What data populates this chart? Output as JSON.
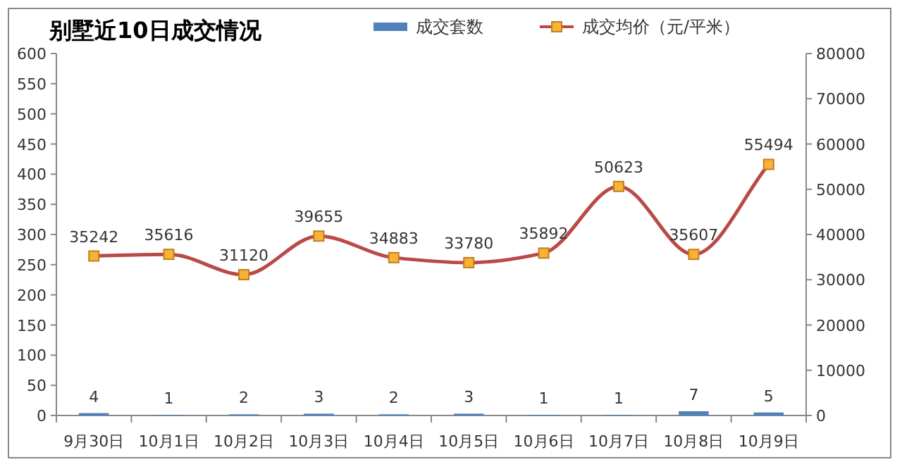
{
  "chart_data": {
    "type": "bar",
    "title": "别墅近10日成交情况",
    "categories": [
      "9月30日",
      "10月1日",
      "10月2日",
      "10月3日",
      "10月4日",
      "10月5日",
      "10月6日",
      "10月7日",
      "10月8日",
      "10月9日"
    ],
    "series": [
      {
        "name": "成交套数",
        "color": "#4f81bd",
        "values": [
          4,
          1,
          2,
          3,
          2,
          3,
          1,
          1,
          7,
          5
        ]
      },
      {
        "name": "成交均价（元/平米）",
        "type": "line",
        "axis": "y2",
        "color": "#b94a48",
        "marker": "square",
        "values": [
          35242,
          35616,
          31120,
          39655,
          34883,
          33780,
          35892,
          50623,
          35607,
          55494
        ]
      }
    ],
    "ylim": [
      0,
      600
    ],
    "yticks": [
      0,
      50,
      100,
      150,
      200,
      250,
      300,
      350,
      400,
      450,
      500,
      550,
      600
    ],
    "y2lim": [
      0,
      80000
    ],
    "y2ticks": [
      0,
      10000,
      20000,
      30000,
      40000,
      50000,
      60000,
      70000,
      80000
    ],
    "data_labels": true,
    "legend": "top",
    "grid": false
  }
}
